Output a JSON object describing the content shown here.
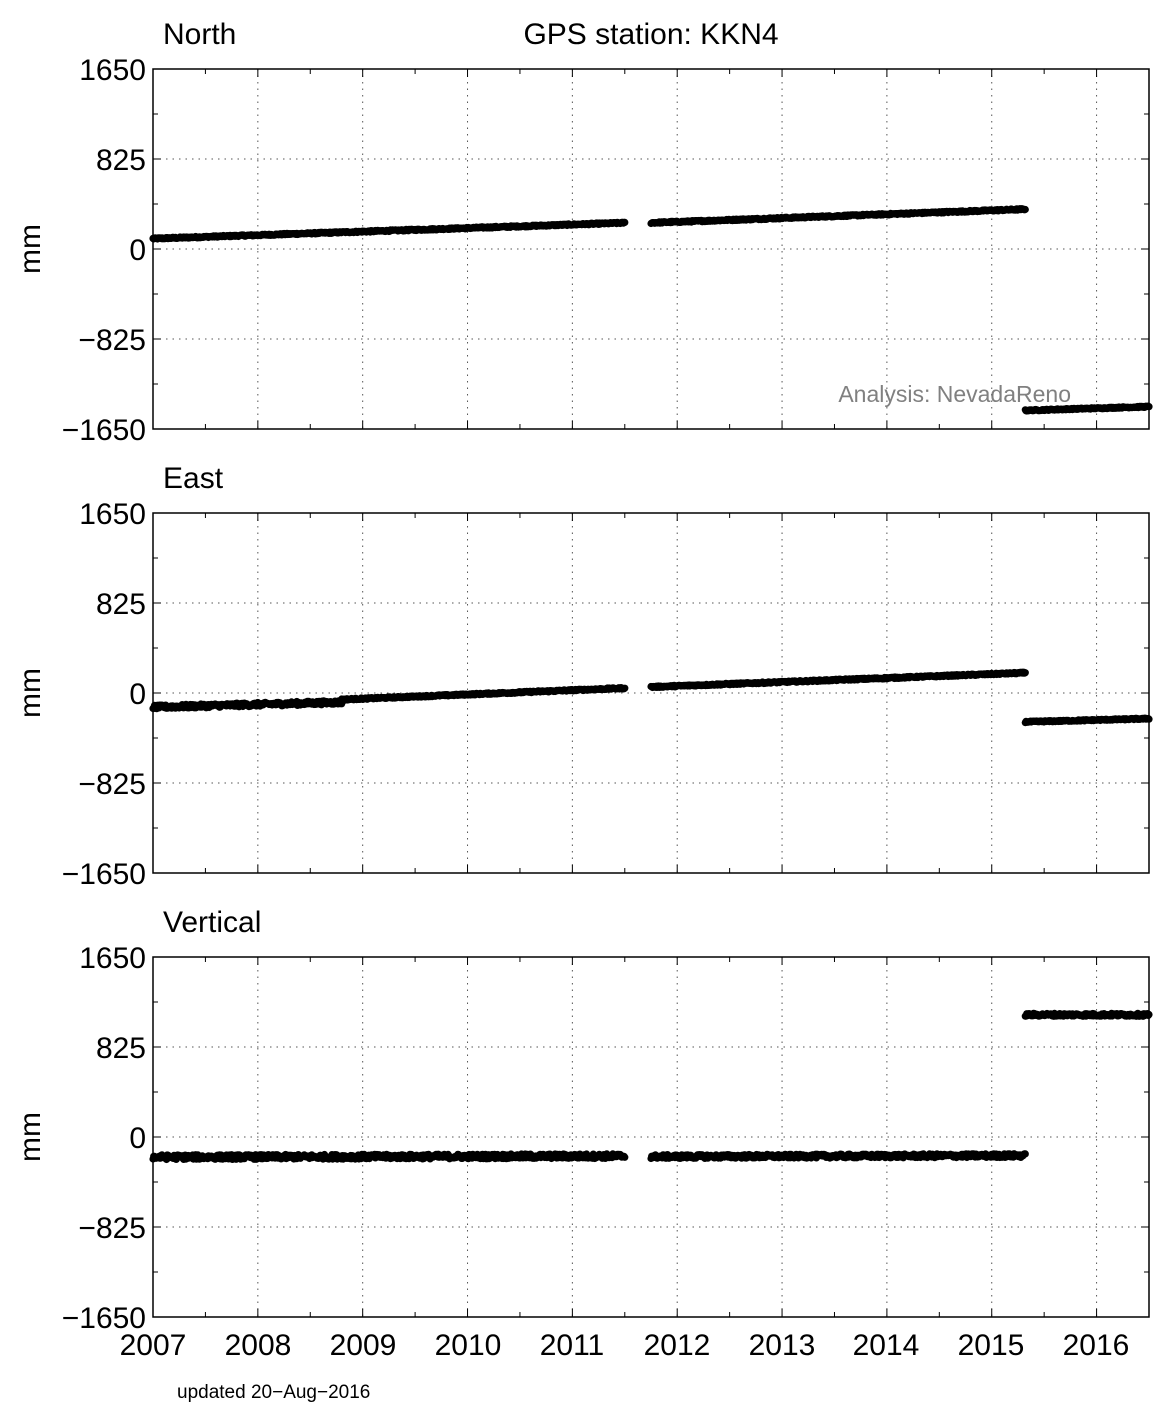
{
  "figure": {
    "title": "GPS station: KKN4",
    "watermark": "Analysis: NevadaReno",
    "updated": "updated 20−Aug−2016",
    "ylabel": "mm",
    "colors": {
      "data": "#000000",
      "grid": "#555555",
      "watermark": "#808080"
    }
  },
  "chart_data": [
    {
      "type": "scatter",
      "title": "North",
      "ylabel": "mm",
      "xlim": [
        2007.0,
        2016.5
      ],
      "ylim": [
        -1650,
        1650
      ],
      "yticks": [
        1650,
        825,
        0,
        -825,
        -1650
      ],
      "ytick_labels": [
        "1650",
        "825",
        "0",
        "−825",
        "−1650"
      ],
      "xticks": [
        2007,
        2008,
        2009,
        2010,
        2011,
        2012,
        2013,
        2014,
        2015,
        2016
      ],
      "grid": true,
      "segments": [
        {
          "x": [
            2007.0,
            2011.5
          ],
          "y": [
            95,
            240
          ],
          "noise": 7
        },
        {
          "x": [
            2011.75,
            2015.32
          ],
          "y": [
            240,
            365
          ],
          "noise": 7
        },
        {
          "x": [
            2015.32,
            2016.5
          ],
          "y": [
            -1480,
            -1445
          ],
          "noise": 6
        }
      ]
    },
    {
      "type": "scatter",
      "title": "East",
      "ylabel": "mm",
      "xlim": [
        2007.0,
        2016.5
      ],
      "ylim": [
        -1650,
        1650
      ],
      "yticks": [
        1650,
        825,
        0,
        -825,
        -1650
      ],
      "ytick_labels": [
        "1650",
        "825",
        "0",
        "−825",
        "−1650"
      ],
      "xticks": [
        2007,
        2008,
        2009,
        2010,
        2011,
        2012,
        2013,
        2014,
        2015,
        2016
      ],
      "grid": true,
      "segments": [
        {
          "x": [
            2007.0,
            2008.8
          ],
          "y": [
            -130,
            -85
          ],
          "noise": 18
        },
        {
          "x": [
            2008.8,
            2011.5
          ],
          "y": [
            -60,
            45
          ],
          "noise": 7
        },
        {
          "x": [
            2011.75,
            2015.32
          ],
          "y": [
            55,
            185
          ],
          "noise": 7
        },
        {
          "x": [
            2015.32,
            2016.5
          ],
          "y": [
            -265,
            -235
          ],
          "noise": 6
        }
      ]
    },
    {
      "type": "scatter",
      "title": "Vertical",
      "ylabel": "mm",
      "xlim": [
        2007.0,
        2016.5
      ],
      "ylim": [
        -1650,
        1650
      ],
      "yticks": [
        1650,
        825,
        0,
        -825,
        -1650
      ],
      "ytick_labels": [
        "1650",
        "825",
        "0",
        "−825",
        "−1650"
      ],
      "xticks": [
        2007,
        2008,
        2009,
        2010,
        2011,
        2012,
        2013,
        2014,
        2015,
        2016
      ],
      "xtick_labels": [
        "2007",
        "2008",
        "2009",
        "2010",
        "2011",
        "2012",
        "2013",
        "2014",
        "2015",
        "2016"
      ],
      "grid": true,
      "segments": [
        {
          "x": [
            2007.0,
            2011.5
          ],
          "y": [
            -185,
            -175
          ],
          "noise": 22
        },
        {
          "x": [
            2011.75,
            2015.32
          ],
          "y": [
            -180,
            -170
          ],
          "noise": 18
        },
        {
          "x": [
            2015.32,
            2016.5
          ],
          "y": [
            1120,
            1120
          ],
          "noise": 14
        }
      ]
    }
  ]
}
